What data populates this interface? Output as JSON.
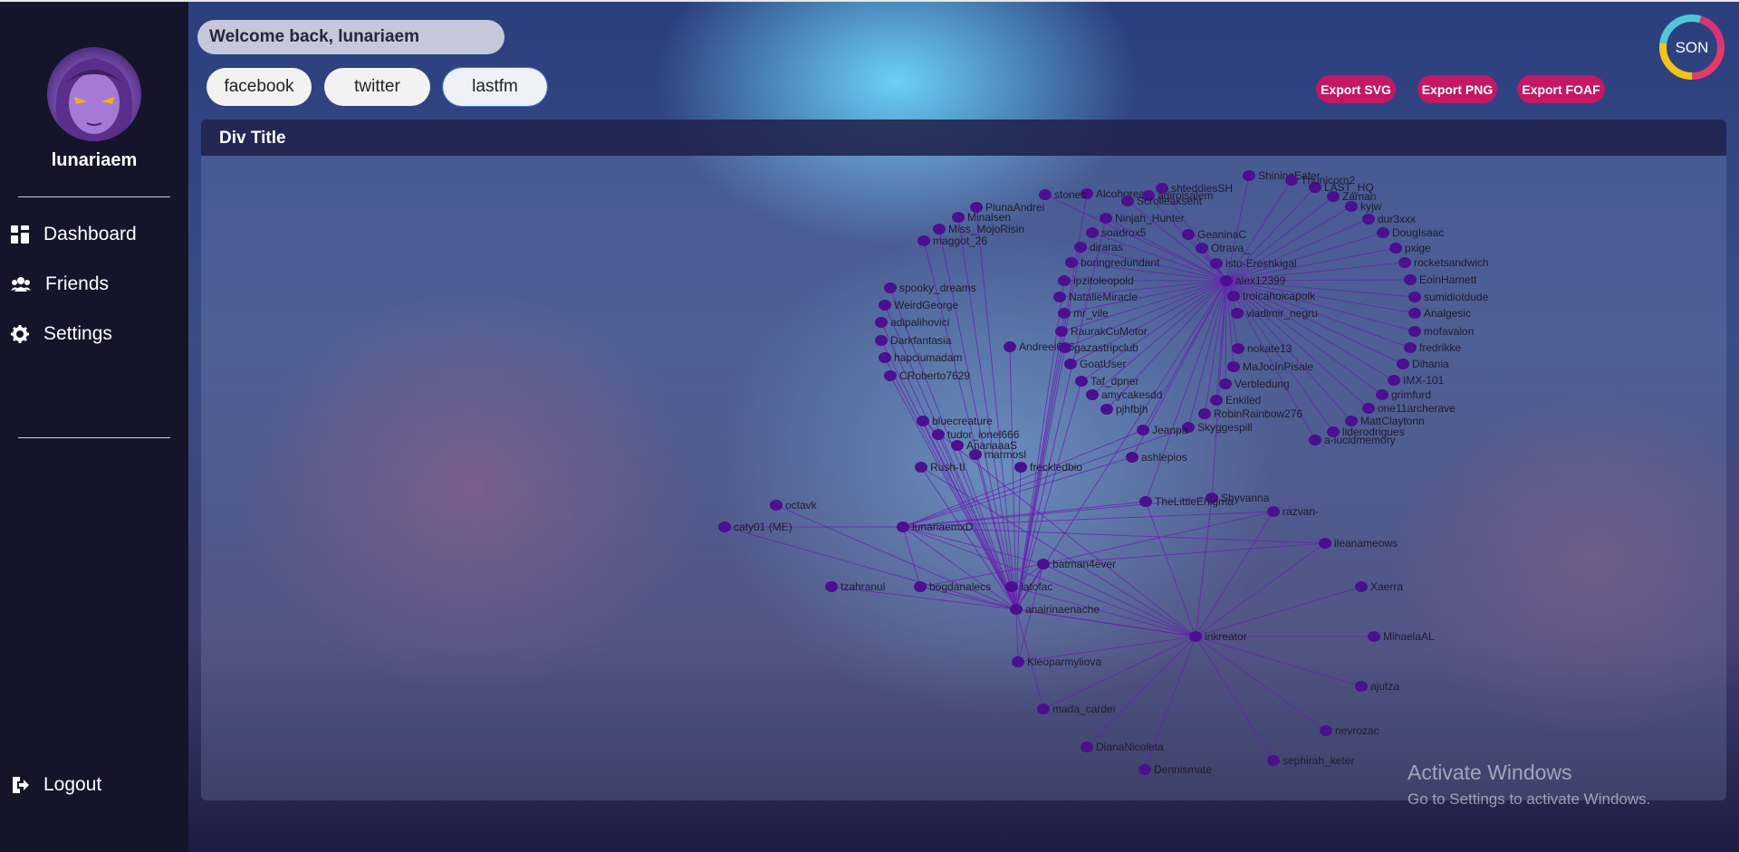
{
  "header": {
    "welcome": "Welcome back, lunariaem",
    "tabs": [
      {
        "label": "facebook"
      },
      {
        "label": "twitter"
      },
      {
        "label": "lastfm",
        "active": true
      }
    ],
    "exports": [
      {
        "label": "Export SVG"
      },
      {
        "label": "Export PNG"
      },
      {
        "label": "Export FOAF"
      }
    ],
    "logo_text": "SON"
  },
  "sidebar": {
    "username": "lunariaem",
    "nav": [
      {
        "label": "Dashboard",
        "icon": "dashboard-icon"
      },
      {
        "label": "Friends",
        "icon": "friends-icon"
      },
      {
        "label": "Settings",
        "icon": "gear-icon"
      }
    ],
    "logout": {
      "label": "Logout",
      "icon": "logout-icon"
    }
  },
  "panel": {
    "title": "Div Title"
  },
  "graph": {
    "node_color": "#4b0f8f",
    "edge_color": "#6a1fb0",
    "nodes": [
      {
        "label": "octavk"
      },
      {
        "label": "caty01 (ME)"
      },
      {
        "label": "tzahranul"
      },
      {
        "label": "lunariaemxD"
      },
      {
        "label": "bogdanalecs"
      },
      {
        "label": "anairinaenache"
      },
      {
        "label": "bluecreature"
      },
      {
        "label": "tudor_ionel666"
      },
      {
        "label": "AnanaaaS"
      },
      {
        "label": "marmosl"
      },
      {
        "label": "Rush-II"
      },
      {
        "label": "freckledbio"
      },
      {
        "label": "spooky_dreams"
      },
      {
        "label": "WeirdGeorge"
      },
      {
        "label": "adipalihovici"
      },
      {
        "label": "Darkfantasia"
      },
      {
        "label": "hapciumadam"
      },
      {
        "label": "CRoberto7629"
      },
      {
        "label": "maggot_26"
      },
      {
        "label": "Miss_MojoRisin"
      },
      {
        "label": "Minalsen"
      },
      {
        "label": "PiunaAndrei"
      },
      {
        "label": "Andreei676"
      },
      {
        "label": "alex12399"
      },
      {
        "label": "istu-Ereshkigal"
      },
      {
        "label": "GeaninaC"
      },
      {
        "label": "Otrava_"
      },
      {
        "label": "troicahoicapolk"
      },
      {
        "label": "vladimir_negru"
      },
      {
        "label": "Ninjah_Hunter"
      },
      {
        "label": "soadrox5"
      },
      {
        "label": "diraras"
      },
      {
        "label": "boringredundant"
      },
      {
        "label": "ipzitoleopold"
      },
      {
        "label": "NatalieMiracle"
      },
      {
        "label": "mr_vile"
      },
      {
        "label": "RaurakCuMotor"
      },
      {
        "label": "gazastripclub"
      },
      {
        "label": "GoatUser"
      },
      {
        "label": "Taf_dpner"
      },
      {
        "label": "amycakesdd"
      },
      {
        "label": "pjhfbjh"
      },
      {
        "label": "LAST_HQ"
      },
      {
        "label": "Zaman"
      },
      {
        "label": "kyjw"
      },
      {
        "label": "dur3xxx"
      },
      {
        "label": "DougIsaac"
      },
      {
        "label": "pxige"
      },
      {
        "label": "rocketsandwich"
      },
      {
        "label": "EoinHarnett"
      },
      {
        "label": "sumidiotdude"
      },
      {
        "label": "Analgesic"
      },
      {
        "label": "mofavalon"
      },
      {
        "label": "fredrikke"
      },
      {
        "label": "Dihania"
      },
      {
        "label": "IMX-101"
      },
      {
        "label": "grimfurd"
      },
      {
        "label": "one11archerave"
      },
      {
        "label": "MattClaytonn"
      },
      {
        "label": "liderodrigues"
      },
      {
        "label": "a-lucidmemory"
      },
      {
        "label": "nokate13"
      },
      {
        "label": "MaJocInPisale"
      },
      {
        "label": "Verbledung"
      },
      {
        "label": "Enkiled"
      },
      {
        "label": "RobinRainbow276"
      },
      {
        "label": "Skyggespill"
      },
      {
        "label": "Jeanpa"
      },
      {
        "label": "ashlepios"
      },
      {
        "label": "Shyvanna"
      },
      {
        "label": "TheLittleEnigma"
      },
      {
        "label": "razvan-"
      },
      {
        "label": "ileanameows"
      },
      {
        "label": "Xaerra"
      },
      {
        "label": "MihaelaAL"
      },
      {
        "label": "ajutza"
      },
      {
        "label": "nevrozac"
      },
      {
        "label": "sephirah_keter"
      },
      {
        "label": "inkreator"
      },
      {
        "label": "batman4ever"
      },
      {
        "label": "latofac"
      },
      {
        "label": "Kleoparmyliova"
      },
      {
        "label": "mada_cardei"
      },
      {
        "label": "DianaNicoleta"
      },
      {
        "label": "Dennismate"
      },
      {
        "label": "Alcohorea"
      },
      {
        "label": "stones"
      },
      {
        "label": "shteddiesSH"
      },
      {
        "label": "ShiningEater"
      },
      {
        "label": "Thunicorn2"
      },
      {
        "label": "adiroisalem"
      },
      {
        "label": "Scrolleaksent"
      }
    ]
  },
  "watermark": {
    "line1": "Activate Windows",
    "line2": "Go to Settings to activate Windows."
  }
}
